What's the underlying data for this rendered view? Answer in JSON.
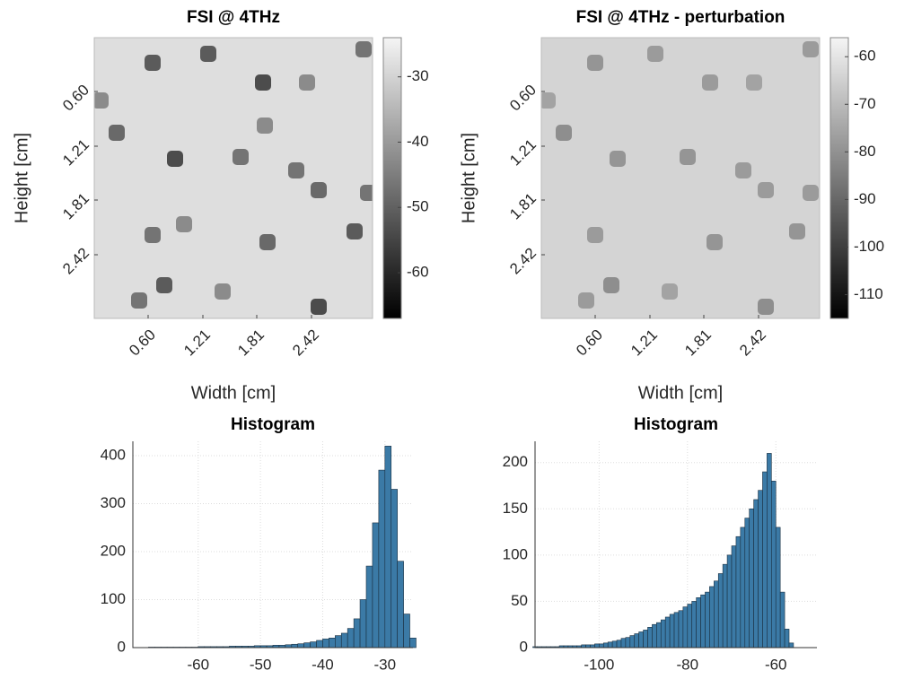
{
  "chart_data": [
    {
      "type": "heatmap",
      "title": "FSI @ 4THz",
      "xlabel": "Width [cm]",
      "ylabel": "Height [cm]",
      "xlim": [
        0,
        3.1
      ],
      "ylim": [
        0,
        3.13
      ],
      "xticks": [
        {
          "value": 0.6,
          "label": "0.60"
        },
        {
          "value": 1.21,
          "label": "1.21"
        },
        {
          "value": 1.81,
          "label": "1.81"
        },
        {
          "value": 2.42,
          "label": "2.42"
        }
      ],
      "yticks": [
        {
          "value": 0.6,
          "label": "0.60"
        },
        {
          "value": 1.21,
          "label": "1.21"
        },
        {
          "value": 1.81,
          "label": "1.81"
        },
        {
          "value": 2.42,
          "label": "2.42"
        }
      ],
      "colormap": "gray",
      "clim": [
        -67,
        -24
      ],
      "cticks": [
        -60,
        -50,
        -40,
        -30
      ],
      "background": -28,
      "spots": [
        {
          "x": 0.65,
          "y": 0.28,
          "value": -55
        },
        {
          "x": 1.27,
          "y": 0.18,
          "value": -55
        },
        {
          "x": 1.88,
          "y": 0.5,
          "value": -58
        },
        {
          "x": 2.37,
          "y": 0.5,
          "value": -45
        },
        {
          "x": 3.0,
          "y": 0.13,
          "value": -50
        },
        {
          "x": 0.07,
          "y": 0.7,
          "value": -45
        },
        {
          "x": 0.25,
          "y": 1.06,
          "value": -52
        },
        {
          "x": 0.9,
          "y": 1.35,
          "value": -58
        },
        {
          "x": 1.63,
          "y": 1.33,
          "value": -50
        },
        {
          "x": 1.9,
          "y": 0.98,
          "value": -45
        },
        {
          "x": 2.25,
          "y": 1.48,
          "value": -50
        },
        {
          "x": 2.5,
          "y": 1.7,
          "value": -52
        },
        {
          "x": 3.05,
          "y": 1.73,
          "value": -50
        },
        {
          "x": 0.65,
          "y": 2.2,
          "value": -50
        },
        {
          "x": 1.0,
          "y": 2.08,
          "value": -45
        },
        {
          "x": 1.93,
          "y": 2.28,
          "value": -52
        },
        {
          "x": 2.9,
          "y": 2.16,
          "value": -55
        },
        {
          "x": 0.78,
          "y": 2.76,
          "value": -55
        },
        {
          "x": 0.5,
          "y": 2.93,
          "value": -50
        },
        {
          "x": 1.43,
          "y": 2.83,
          "value": -45
        },
        {
          "x": 2.5,
          "y": 3.0,
          "value": -58
        }
      ]
    },
    {
      "type": "heatmap",
      "title": "FSI @ 4THz - perturbation",
      "xlabel": "Width [cm]",
      "ylabel": "Height [cm]",
      "xlim": [
        0,
        3.1
      ],
      "ylim": [
        0,
        3.13
      ],
      "xticks": [
        {
          "value": 0.6,
          "label": "0.60"
        },
        {
          "value": 1.21,
          "label": "1.21"
        },
        {
          "value": 1.81,
          "label": "1.81"
        },
        {
          "value": 2.42,
          "label": "2.42"
        }
      ],
      "yticks": [
        {
          "value": 0.6,
          "label": "0.60"
        },
        {
          "value": 1.21,
          "label": "1.21"
        },
        {
          "value": 1.81,
          "label": "1.81"
        },
        {
          "value": 2.42,
          "label": "2.42"
        }
      ],
      "colormap": "gray",
      "clim": [
        -115,
        -56
      ],
      "cticks": [
        -110,
        -100,
        -90,
        -80,
        -70,
        -60
      ],
      "background": -64,
      "spots": [
        {
          "x": 0.6,
          "y": 0.28,
          "value": -82
        },
        {
          "x": 1.27,
          "y": 0.18,
          "value": -80
        },
        {
          "x": 1.88,
          "y": 0.5,
          "value": -80
        },
        {
          "x": 2.37,
          "y": 0.5,
          "value": -78
        },
        {
          "x": 3.0,
          "y": 0.13,
          "value": -80
        },
        {
          "x": 0.07,
          "y": 0.7,
          "value": -78
        },
        {
          "x": 0.25,
          "y": 1.06,
          "value": -84
        },
        {
          "x": 0.85,
          "y": 1.35,
          "value": -82
        },
        {
          "x": 1.63,
          "y": 1.33,
          "value": -82
        },
        {
          "x": 2.25,
          "y": 1.48,
          "value": -80
        },
        {
          "x": 2.5,
          "y": 1.7,
          "value": -80
        },
        {
          "x": 3.0,
          "y": 1.73,
          "value": -80
        },
        {
          "x": 0.6,
          "y": 2.2,
          "value": -80
        },
        {
          "x": 1.93,
          "y": 2.28,
          "value": -82
        },
        {
          "x": 2.85,
          "y": 2.16,
          "value": -82
        },
        {
          "x": 0.78,
          "y": 2.76,
          "value": -84
        },
        {
          "x": 0.5,
          "y": 2.93,
          "value": -80
        },
        {
          "x": 1.43,
          "y": 2.83,
          "value": -78
        },
        {
          "x": 2.5,
          "y": 3.0,
          "value": -84
        }
      ]
    },
    {
      "type": "histogram",
      "title": "Histogram",
      "color": "#3b7aa6",
      "grid": true,
      "xlim": [
        -70.5,
        -25.5
      ],
      "ylim": [
        0,
        430
      ],
      "xticks": [
        -60,
        -50,
        -40,
        -30
      ],
      "yticks": [
        0,
        100,
        200,
        300,
        400
      ],
      "bins": [
        -68,
        -67,
        -66,
        -65,
        -64,
        -63,
        -62,
        -61,
        -60,
        -59,
        -58,
        -57,
        -56,
        -55,
        -54,
        -53,
        -52,
        -51,
        -50,
        -49,
        -48,
        -47,
        -46,
        -45,
        -44,
        -43,
        -42,
        -41,
        -40,
        -39,
        -38,
        -37,
        -36,
        -35,
        -34,
        -33,
        -32,
        -31,
        -30,
        -29,
        -28,
        -27,
        -26,
        -25
      ],
      "counts": [
        1,
        1,
        1,
        1,
        1,
        1,
        1,
        1,
        2,
        2,
        2,
        2,
        2,
        3,
        3,
        3,
        3,
        4,
        4,
        4,
        5,
        5,
        6,
        7,
        8,
        10,
        12,
        15,
        18,
        20,
        25,
        30,
        40,
        60,
        100,
        170,
        260,
        370,
        420,
        330,
        180,
        70,
        20
      ]
    },
    {
      "type": "histogram",
      "title": "Histogram",
      "color": "#3b7aa6",
      "grid": true,
      "xlim": [
        -114.5,
        -50.7
      ],
      "ylim": [
        0,
        223
      ],
      "xticks": [
        -100,
        -80,
        -60
      ],
      "yticks": [
        0,
        50,
        100,
        150,
        200
      ],
      "bins": [
        -115,
        -114,
        -113,
        -112,
        -111,
        -110,
        -109,
        -108,
        -107,
        -106,
        -105,
        -104,
        -103,
        -102,
        -101,
        -100,
        -99,
        -98,
        -97,
        -96,
        -95,
        -94,
        -93,
        -92,
        -91,
        -90,
        -89,
        -88,
        -87,
        -86,
        -85,
        -84,
        -83,
        -82,
        -81,
        -80,
        -79,
        -78,
        -77,
        -76,
        -75,
        -74,
        -73,
        -72,
        -71,
        -70,
        -69,
        -68,
        -67,
        -66,
        -65,
        -64,
        -63,
        -62,
        -61,
        -60,
        -59,
        -58,
        -57,
        -56
      ],
      "counts": [
        1,
        1,
        1,
        1,
        1,
        1,
        2,
        2,
        2,
        2,
        2,
        3,
        3,
        3,
        4,
        4,
        5,
        6,
        7,
        8,
        10,
        11,
        13,
        15,
        17,
        19,
        22,
        25,
        27,
        30,
        33,
        36,
        38,
        40,
        44,
        47,
        50,
        54,
        57,
        60,
        66,
        72,
        80,
        90,
        100,
        110,
        120,
        130,
        140,
        150,
        160,
        170,
        190,
        210,
        180,
        130,
        60,
        20,
        5
      ]
    }
  ]
}
